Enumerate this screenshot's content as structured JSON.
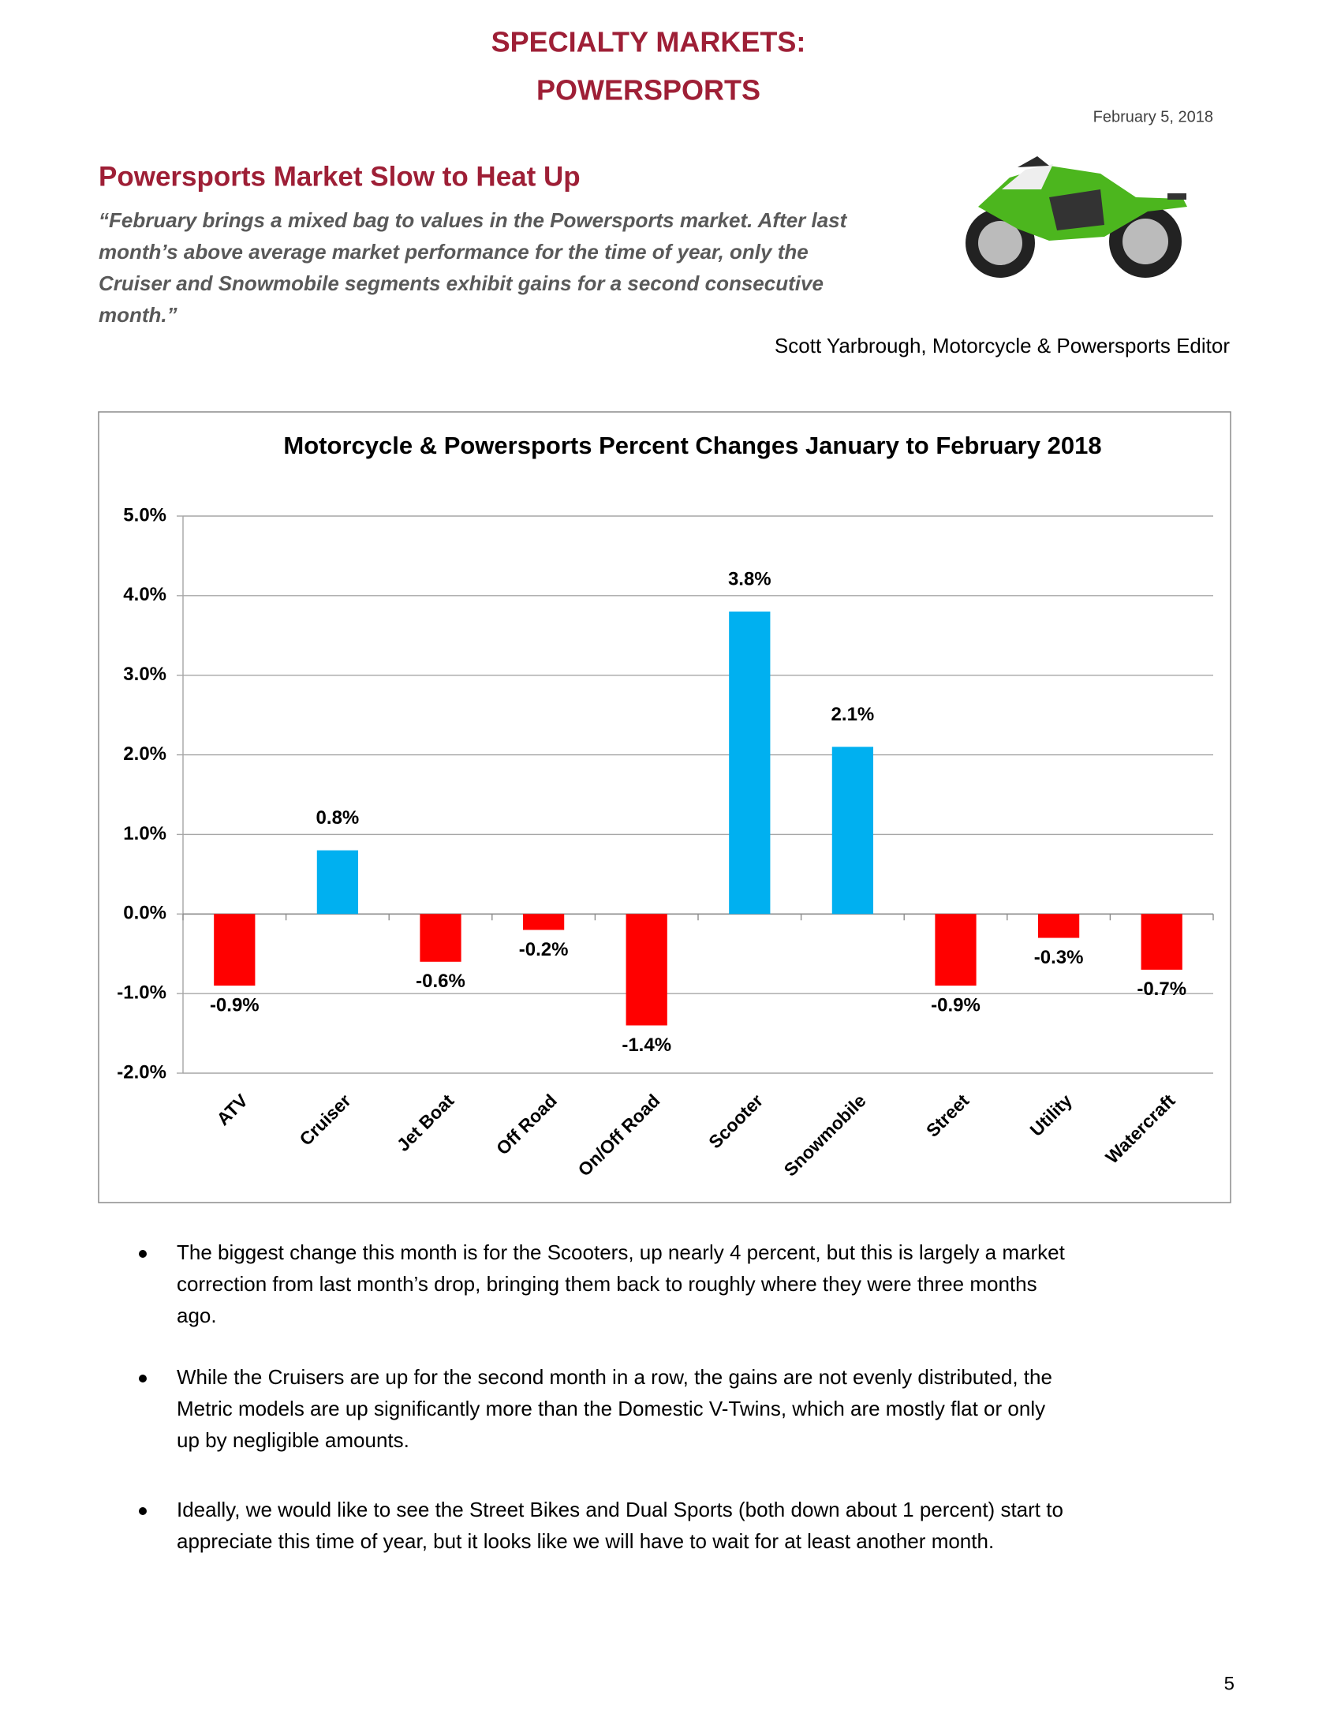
{
  "header": {
    "title_lines": [
      "SPECIALTY MARKETS:",
      "POWERSPORTS"
    ],
    "date": "February 5, 2018"
  },
  "article": {
    "headline": "Powersports Market Slow to Heat Up",
    "quote_lines": [
      "“February brings a mixed bag to values in the Powersports market.  After last",
      "month’s above average market performance for the time of year, only the",
      "Cruiser and Snowmobile segments exhibit gains for a second consecutive",
      "month.”"
    ],
    "attribution": "Scott Yarbrough, Motorcycle & Powersports Editor"
  },
  "chart_data": {
    "type": "bar",
    "title": "Motorcycle & Powersports Percent Changes January to February 2018",
    "categories": [
      "ATV",
      "Cruiser",
      "Jet Boat",
      "Off Road",
      "On/Off Road",
      "Scooter",
      "Snowmobile",
      "Street",
      "Utility",
      "Watercraft"
    ],
    "values": [
      -0.9,
      0.8,
      -0.6,
      -0.2,
      -1.4,
      3.8,
      2.1,
      -0.9,
      -0.3,
      -0.7
    ],
    "value_labels": [
      "-0.9%",
      "0.8%",
      "-0.6%",
      "-0.2%",
      "-1.4%",
      "3.8%",
      "2.1%",
      "-0.9%",
      "-0.3%",
      "-0.7%"
    ],
    "colors": [
      "#ff0000",
      "#00b0f0",
      "#ff0000",
      "#ff0000",
      "#ff0000",
      "#00b0f0",
      "#00b0f0",
      "#ff0000",
      "#ff0000",
      "#ff0000"
    ],
    "ylim": [
      -2,
      5
    ],
    "yticks": [
      {
        "value": -2,
        "label": "-2.0%"
      },
      {
        "value": -1,
        "label": "-1.0%"
      },
      {
        "value": 0,
        "label": "0.0%"
      },
      {
        "value": 1,
        "label": "1.0%"
      },
      {
        "value": 2,
        "label": "2.0%"
      },
      {
        "value": 3,
        "label": "3.0%"
      },
      {
        "value": 4,
        "label": "4.0%"
      },
      {
        "value": 5,
        "label": "5.0%"
      }
    ],
    "grid": true
  },
  "bullets": [
    [
      "The biggest change this month is for the Scooters, up nearly 4 percent, but this is largely a market",
      "correction from last month’s drop, bringing them back to roughly where they were three months",
      "ago."
    ],
    [
      "While the Cruisers are up for the second month in a row, the gains are not evenly distributed, the",
      "Metric models are up significantly more than the Domestic V-Twins, which are mostly flat or only",
      "up by negligible amounts."
    ],
    [
      "Ideally, we would like to see the Street Bikes and Dual Sports (both down about 1 percent) start to",
      "appreciate this time of year, but it looks like we will have to wait for at least another month."
    ]
  ],
  "page_number": "5"
}
